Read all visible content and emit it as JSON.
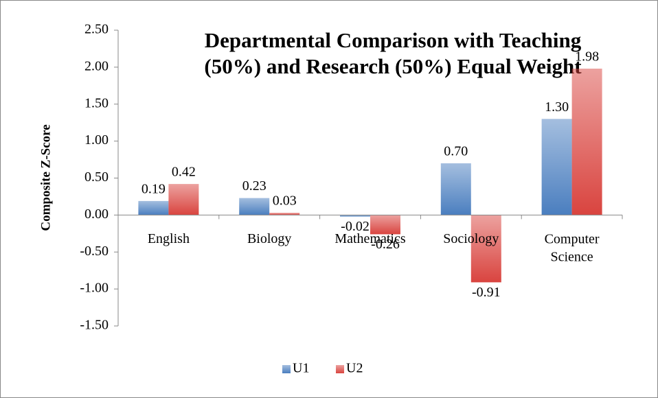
{
  "chart_data": {
    "type": "bar",
    "title": [
      "Departmental Comparison with Teaching",
      "(50%) and Research (50%) Equal Weight"
    ],
    "y_label": "Composite Z-Score",
    "categories": [
      "English",
      "Biology",
      "Mathematics",
      "Sociology",
      "Computer Science"
    ],
    "series": [
      {
        "name": "U1",
        "color": "#4a7ebf",
        "values": [
          0.19,
          0.23,
          -0.02,
          0.7,
          1.3
        ],
        "value_labels": [
          "0.19",
          "0.23",
          "-0.02",
          "0.70",
          "1.30"
        ]
      },
      {
        "name": "U2",
        "color": "#d9443f",
        "values": [
          0.42,
          0.03,
          -0.26,
          -0.91,
          1.98
        ],
        "value_labels": [
          "0.42",
          "0.03",
          "-0.26",
          "-0.91",
          "1.98"
        ]
      }
    ],
    "ylim": [
      -1.5,
      2.5
    ],
    "yticks": [
      {
        "value": -1.5,
        "label": "-1.50"
      },
      {
        "value": -1,
        "label": "-1.00"
      },
      {
        "value": -0.5,
        "label": "-0.50"
      },
      {
        "value": 0,
        "label": "0.00"
      },
      {
        "value": 0.5,
        "label": "0.50"
      },
      {
        "value": 1,
        "label": "1.00"
      },
      {
        "value": 1.5,
        "label": "1.50"
      },
      {
        "value": 2,
        "label": "2.00"
      },
      {
        "value": 2.5,
        "label": "2.50"
      }
    ],
    "grid": false,
    "legend": "bottom"
  }
}
